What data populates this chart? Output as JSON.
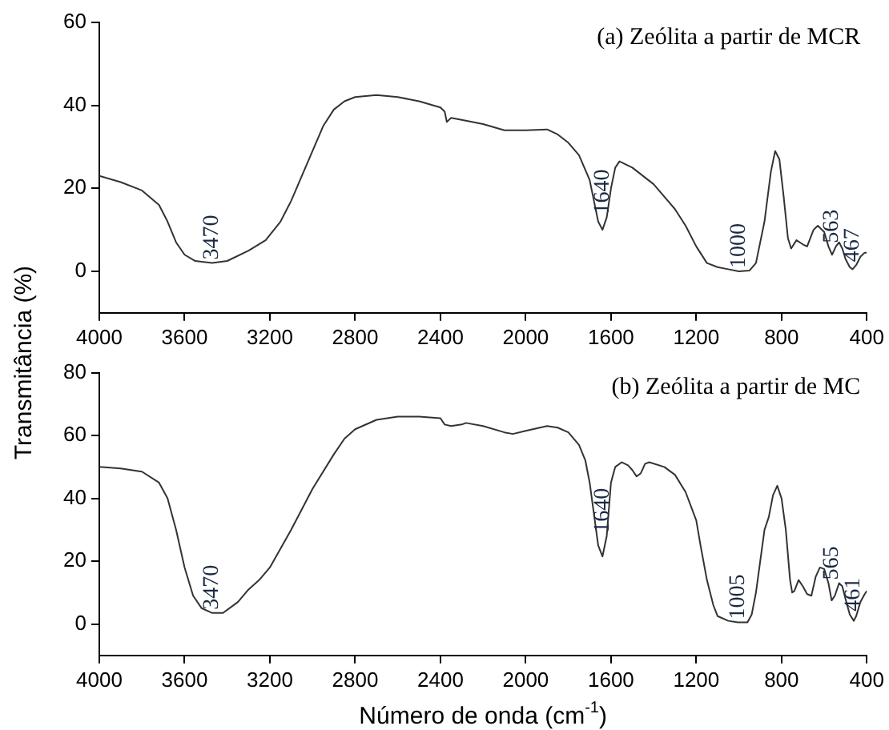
{
  "chart_data": [
    {
      "type": "line",
      "title": "(a) Zeólita a partir de MCR",
      "ylabel": "Transmitância (%)",
      "xlim": [
        4000,
        400
      ],
      "xticks": [
        4000,
        3600,
        3200,
        2800,
        2400,
        2000,
        1600,
        1200,
        800,
        400
      ],
      "ylim": [
        -10,
        60
      ],
      "yticks": [
        0,
        20,
        40,
        60
      ],
      "grid": false,
      "legend": false,
      "marker": "none",
      "line_style": "solid",
      "x": [
        4000,
        3900,
        3800,
        3720,
        3680,
        3640,
        3600,
        3550,
        3470,
        3400,
        3300,
        3220,
        3150,
        3100,
        3000,
        2950,
        2900,
        2850,
        2800,
        2700,
        2600,
        2500,
        2400,
        2380,
        2370,
        2350,
        2300,
        2200,
        2100,
        2000,
        1900,
        1850,
        1800,
        1750,
        1700,
        1680,
        1660,
        1640,
        1620,
        1600,
        1580,
        1560,
        1500,
        1400,
        1300,
        1250,
        1200,
        1150,
        1100,
        1050,
        1000,
        950,
        920,
        880,
        850,
        830,
        810,
        790,
        770,
        755,
        730,
        700,
        680,
        650,
        630,
        600,
        580,
        563,
        545,
        530,
        515,
        500,
        480,
        467,
        450,
        430,
        410,
        400
      ],
      "series": [
        {
          "color": "#333333",
          "values": [
            23,
            21.5,
            19.5,
            16,
            12,
            7,
            4,
            2.5,
            2,
            2.5,
            5,
            7.5,
            12,
            17,
            29,
            35,
            39,
            41,
            42,
            42.5,
            42,
            41,
            39.5,
            38.5,
            36,
            37,
            36.5,
            35.5,
            34,
            34,
            34.2,
            33,
            31,
            28,
            22,
            17,
            12,
            10,
            13,
            20,
            25,
            26.5,
            25,
            21,
            15,
            11,
            6,
            2,
            1,
            0.5,
            0,
            0.2,
            2,
            12,
            24,
            29,
            27,
            18,
            8,
            5.5,
            7.5,
            6.5,
            6,
            10,
            11,
            9.5,
            6,
            4,
            6,
            7,
            5.5,
            3,
            1,
            0.5,
            1.5,
            3.5,
            4.5,
            4.5
          ]
        }
      ],
      "annotations": [
        {
          "text": "3470",
          "x": 3470,
          "y": 2
        },
        {
          "text": "1640",
          "x": 1640,
          "y": 10
        },
        {
          "text": "1000",
          "x": 1000,
          "y": 0
        },
        {
          "text": "563",
          "x": 563,
          "y": 4
        },
        {
          "text": "467",
          "x": 467,
          "y": 0.5
        }
      ]
    },
    {
      "type": "line",
      "title": "(b) Zeólita a partir de MC",
      "xlabel": "Número de onda (cm$^{-1}$)",
      "xlim": [
        4000,
        400
      ],
      "xticks": [
        4000,
        3600,
        3200,
        2800,
        2400,
        2000,
        1600,
        1200,
        800,
        400
      ],
      "ylim": [
        -10,
        80
      ],
      "yticks": [
        0,
        20,
        40,
        60,
        80
      ],
      "grid": false,
      "legend": false,
      "marker": "none",
      "line_style": "solid",
      "x": [
        4000,
        3900,
        3800,
        3720,
        3680,
        3640,
        3600,
        3560,
        3520,
        3470,
        3420,
        3350,
        3300,
        3250,
        3200,
        3100,
        3000,
        2900,
        2850,
        2800,
        2700,
        2600,
        2500,
        2400,
        2380,
        2350,
        2300,
        2280,
        2200,
        2100,
        2060,
        2000,
        1900,
        1850,
        1800,
        1750,
        1720,
        1700,
        1680,
        1660,
        1640,
        1620,
        1600,
        1580,
        1550,
        1520,
        1500,
        1480,
        1460,
        1440,
        1420,
        1350,
        1300,
        1250,
        1200,
        1180,
        1150,
        1120,
        1100,
        1050,
        1005,
        960,
        940,
        920,
        900,
        880,
        860,
        840,
        820,
        800,
        780,
        760,
        750,
        740,
        720,
        700,
        680,
        660,
        640,
        620,
        600,
        580,
        565,
        550,
        530,
        515,
        500,
        480,
        461,
        450,
        430,
        410,
        400
      ],
      "series": [
        {
          "color": "#333333",
          "values": [
            50,
            49.5,
            48.5,
            45,
            40,
            30,
            18,
            9,
            5,
            3.5,
            3.5,
            7,
            11,
            14,
            18,
            30,
            43,
            54,
            59,
            62,
            65,
            66,
            66,
            65.5,
            63.5,
            63,
            63.5,
            64,
            63,
            61,
            60.5,
            61.5,
            63,
            62.5,
            61,
            57,
            52,
            45,
            35,
            25,
            21.5,
            28,
            45,
            50,
            51.5,
            50.5,
            49,
            47,
            48,
            51,
            51.5,
            50,
            47.5,
            42,
            33,
            25,
            14,
            6,
            2.5,
            1,
            0.5,
            0.5,
            3,
            10,
            20,
            30,
            34,
            41,
            44,
            40,
            30,
            14,
            10,
            10.5,
            14,
            12,
            9.5,
            9,
            15,
            18,
            17.5,
            13,
            7.5,
            9,
            13,
            12,
            8,
            3,
            1,
            2.5,
            7,
            9.5,
            10.5
          ]
        }
      ],
      "annotations": [
        {
          "text": "3470",
          "x": 3470,
          "y": 3.5
        },
        {
          "text": "1640",
          "x": 1640,
          "y": 21.5
        },
        {
          "text": "1005",
          "x": 1005,
          "y": 0.5
        },
        {
          "text": "565",
          "x": 565,
          "y": 7.5
        },
        {
          "text": "461",
          "x": 461,
          "y": 1
        }
      ]
    }
  ]
}
